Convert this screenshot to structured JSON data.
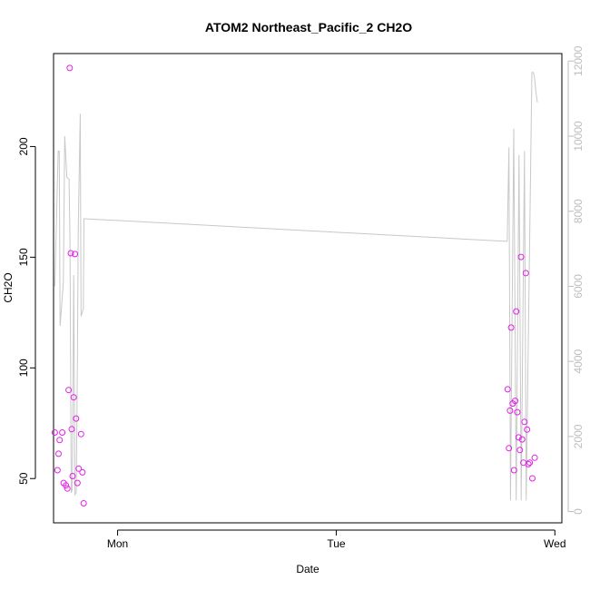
{
  "chart_data": {
    "type": "scatter",
    "title": "ATOM2 Northeast_Pacific_2 CH2O",
    "xlabel": "Date",
    "ylabel": "CH2O",
    "x_ticks": [
      "Mon",
      "Tue",
      "Wed"
    ],
    "x_tick_days": [
      1,
      2,
      3
    ],
    "xlim": [
      0.707,
      3.032
    ],
    "ylim": [
      30.0,
      242.0
    ],
    "y_ticks": [
      50,
      100,
      150,
      200
    ],
    "y2lim": [
      -300,
      12200
    ],
    "y2_ticks": [
      0,
      2000,
      4000,
      6000,
      8000,
      10000,
      12000
    ],
    "grid": false,
    "colors": {
      "points": "#e41ee8",
      "line": "#c8c8c8",
      "frame": "#000000",
      "right_axis": "#bdbdbd"
    },
    "points": [
      {
        "x": 0.713,
        "y": 70.8
      },
      {
        "x": 0.725,
        "y": 53.8
      },
      {
        "x": 0.73,
        "y": 61.2
      },
      {
        "x": 0.735,
        "y": 67.4
      },
      {
        "x": 0.747,
        "y": 70.8
      },
      {
        "x": 0.753,
        "y": 48.0
      },
      {
        "x": 0.764,
        "y": 46.9
      },
      {
        "x": 0.77,
        "y": 45.5
      },
      {
        "x": 0.776,
        "y": 90.0
      },
      {
        "x": 0.781,
        "y": 235.5
      },
      {
        "x": 0.786,
        "y": 151.8
      },
      {
        "x": 0.79,
        "y": 72.3
      },
      {
        "x": 0.794,
        "y": 51.1
      },
      {
        "x": 0.799,
        "y": 86.7
      },
      {
        "x": 0.805,
        "y": 151.4
      },
      {
        "x": 0.81,
        "y": 77.1
      },
      {
        "x": 0.816,
        "y": 48.0
      },
      {
        "x": 0.822,
        "y": 54.5
      },
      {
        "x": 0.833,
        "y": 70.1
      },
      {
        "x": 0.839,
        "y": 52.8
      },
      {
        "x": 0.845,
        "y": 38.8
      },
      {
        "x": 2.784,
        "y": 90.3
      },
      {
        "x": 2.79,
        "y": 63.7
      },
      {
        "x": 2.795,
        "y": 80.7
      },
      {
        "x": 2.8,
        "y": 118.2
      },
      {
        "x": 2.807,
        "y": 83.9
      },
      {
        "x": 2.813,
        "y": 53.8
      },
      {
        "x": 2.818,
        "y": 85.1
      },
      {
        "x": 2.823,
        "y": 125.5
      },
      {
        "x": 2.828,
        "y": 80.0
      },
      {
        "x": 2.834,
        "y": 68.6
      },
      {
        "x": 2.84,
        "y": 62.9
      },
      {
        "x": 2.845,
        "y": 150.1
      },
      {
        "x": 2.85,
        "y": 67.7
      },
      {
        "x": 2.856,
        "y": 57.2
      },
      {
        "x": 2.861,
        "y": 75.6
      },
      {
        "x": 2.867,
        "y": 142.8
      },
      {
        "x": 2.873,
        "y": 72.1
      },
      {
        "x": 2.879,
        "y": 56.5
      },
      {
        "x": 2.885,
        "y": 57.2
      },
      {
        "x": 2.897,
        "y": 50.1
      },
      {
        "x": 2.908,
        "y": 59.4
      }
    ],
    "line_series": [
      {
        "x": 0.713,
        "y": 6000
      },
      {
        "x": 0.728,
        "y": 9600
      },
      {
        "x": 0.733,
        "y": 9600
      },
      {
        "x": 0.737,
        "y": 4950
      },
      {
        "x": 0.752,
        "y": 6100
      },
      {
        "x": 0.758,
        "y": 10000
      },
      {
        "x": 0.768,
        "y": 8900
      },
      {
        "x": 0.778,
        "y": 8850
      },
      {
        "x": 0.782,
        "y": 7200
      },
      {
        "x": 0.788,
        "y": 500
      },
      {
        "x": 0.793,
        "y": 600
      },
      {
        "x": 0.799,
        "y": 6300
      },
      {
        "x": 0.805,
        "y": 450
      },
      {
        "x": 0.811,
        "y": 500
      },
      {
        "x": 0.816,
        "y": 4000
      },
      {
        "x": 0.82,
        "y": 7500
      },
      {
        "x": 0.829,
        "y": 10600
      },
      {
        "x": 0.833,
        "y": 5200
      },
      {
        "x": 0.843,
        "y": 5400
      },
      {
        "x": 0.846,
        "y": 7800
      },
      {
        "x": 0.85,
        "y": 7800
      },
      {
        "x": 2.77,
        "y": 7200
      },
      {
        "x": 2.782,
        "y": 7200
      },
      {
        "x": 2.79,
        "y": 9700
      },
      {
        "x": 2.797,
        "y": 300
      },
      {
        "x": 2.812,
        "y": 10200
      },
      {
        "x": 2.823,
        "y": 300
      },
      {
        "x": 2.836,
        "y": 9500
      },
      {
        "x": 2.846,
        "y": 300
      },
      {
        "x": 2.861,
        "y": 9600
      },
      {
        "x": 2.869,
        "y": 300
      },
      {
        "x": 2.895,
        "y": 11700
      },
      {
        "x": 2.901,
        "y": 11700
      },
      {
        "x": 2.906,
        "y": 11600
      },
      {
        "x": 2.913,
        "y": 11200
      },
      {
        "x": 2.92,
        "y": 10900
      }
    ]
  }
}
